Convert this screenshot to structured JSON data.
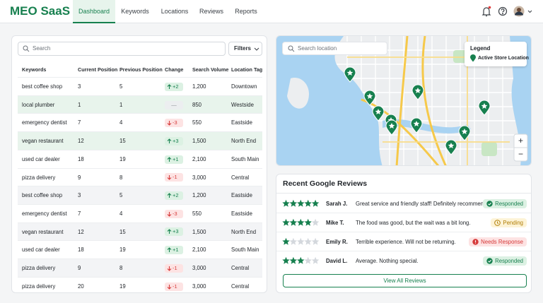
{
  "header": {
    "logo": "MEO SaaS",
    "nav": [
      "Dashboard",
      "Keywords",
      "Locations",
      "Reviews",
      "Reports"
    ]
  },
  "table": {
    "search_placeholder": "Search",
    "filters": "Filters",
    "columns": [
      "Keywords",
      "Current Position",
      "Previous Position",
      "Change",
      "Search Volume",
      "Location Tag"
    ],
    "rows": [
      [
        "best coffee shop",
        "3",
        "5",
        "+2",
        "1,200",
        "Downtown"
      ],
      [
        "local plumber",
        "1",
        "1",
        "—",
        "850",
        "Westside"
      ],
      [
        "emergency dentist",
        "7",
        "4",
        "-3",
        "550",
        "Eastside"
      ],
      [
        "vegan restaurant",
        "12",
        "15",
        "+3",
        "1,500",
        "North End"
      ],
      [
        "used car dealer",
        "18",
        "19",
        "+1",
        "2,100",
        "South Main"
      ],
      [
        "pizza delivery",
        "9",
        "8",
        "-1",
        "3,000",
        "Central"
      ],
      [
        "best coffee shop",
        "3",
        "5",
        "+2",
        "1,200",
        "Eastside"
      ],
      [
        "emergency dentist",
        "7",
        "4",
        "-3",
        "550",
        "Eastside"
      ],
      [
        "vegan restaurant",
        "12",
        "15",
        "+3",
        "1,500",
        "North End"
      ],
      [
        "used car dealer",
        "18",
        "19",
        "+1",
        "2,100",
        "South Main"
      ],
      [
        "pizza delivery",
        "9",
        "8",
        "-1",
        "3,000",
        "Central"
      ],
      [
        "pizza delivery",
        "20",
        "19",
        "-1",
        "3,000",
        "Central"
      ]
    ]
  },
  "map": {
    "search_placeholder": "Search location",
    "legend_title": "Legend",
    "legend_item": "Active Store Location",
    "zoom_in": "+",
    "zoom_out": "−"
  },
  "reviews": {
    "title": "Recent Google Reviews",
    "button": "View All Reviews",
    "items": [
      {
        "stars": 5,
        "name": "Sarah J.",
        "text": "Great service and friendly staff! Definitely recommend.",
        "status": "Responded"
      },
      {
        "stars": 4,
        "name": "Mike T.",
        "text": "The food was good, but the wait was a bit long.",
        "status": "Pending"
      },
      {
        "stars": 1,
        "name": "Emily R.",
        "text": "Terrible experience. Will not be returning.",
        "status": "Needs Response"
      },
      {
        "stars": 3,
        "name": "David L.",
        "text": "Average. Nothing special.",
        "status": "Responded"
      }
    ]
  }
}
